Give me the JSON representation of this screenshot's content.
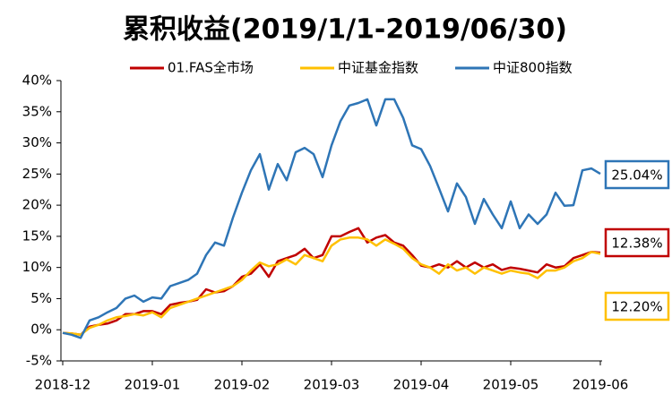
{
  "chart_data": {
    "type": "line",
    "title": "累积收益(2019/1/1-2019/06/30)",
    "categories": [
      "2018-12",
      null,
      null,
      null,
      null,
      null,
      null,
      null,
      null,
      null,
      "2019-01",
      null,
      null,
      null,
      null,
      null,
      null,
      null,
      null,
      null,
      "2019-02",
      null,
      null,
      null,
      null,
      null,
      null,
      null,
      null,
      null,
      "2019-03",
      null,
      null,
      null,
      null,
      null,
      null,
      null,
      null,
      null,
      "2019-04",
      null,
      null,
      null,
      null,
      null,
      null,
      null,
      null,
      null,
      "2019-05",
      null,
      null,
      null,
      null,
      null,
      null,
      null,
      null,
      null,
      "2019-06"
    ],
    "series": [
      {
        "name": "01.FAS全市场",
        "color": "#c00000",
        "values": [
          -0.5,
          -0.6,
          -0.8,
          0.5,
          0.8,
          1.0,
          1.5,
          2.5,
          2.5,
          3.0,
          3.0,
          2.5,
          4.0,
          4.3,
          4.5,
          4.8,
          6.5,
          6.0,
          6.2,
          7.0,
          8.5,
          9.0,
          10.5,
          8.5,
          11.0,
          11.5,
          12.0,
          13.0,
          11.5,
          12.0,
          15.0,
          15.0,
          15.7,
          16.3,
          14.0,
          14.8,
          15.2,
          14.0,
          13.5,
          12.0,
          10.3,
          10.0,
          10.5,
          10.0,
          11.0,
          10.0,
          10.8,
          10.0,
          10.5,
          9.6,
          10.0,
          9.8,
          9.5,
          9.2,
          10.5,
          10.0,
          10.2,
          11.5,
          12.0,
          12.5,
          12.38
        ],
        "value_labels": [
          null,
          null,
          null,
          null,
          null,
          null,
          null,
          null,
          null,
          null,
          null,
          null,
          null,
          null,
          null,
          null,
          null,
          null,
          null,
          null,
          null,
          null,
          null,
          null,
          null,
          null,
          null,
          null,
          null,
          null,
          null,
          null,
          null,
          null,
          null,
          null,
          null,
          null,
          null,
          null,
          null,
          null,
          null,
          null,
          null,
          null,
          null,
          null,
          null,
          null,
          null,
          null,
          null,
          null,
          null,
          null,
          null,
          null,
          null,
          null,
          "12.38%"
        ]
      },
      {
        "name": "中证基金指数",
        "color": "#ffc000",
        "values": [
          -0.5,
          -0.6,
          -0.8,
          0.3,
          0.8,
          1.5,
          2.0,
          2.2,
          2.5,
          2.3,
          2.8,
          2.0,
          3.5,
          4.0,
          4.5,
          5.0,
          5.5,
          6.0,
          6.5,
          7.0,
          8.0,
          9.5,
          10.8,
          10.2,
          10.5,
          11.3,
          10.5,
          12.0,
          11.5,
          11.0,
          13.5,
          14.5,
          14.8,
          14.8,
          14.5,
          13.5,
          14.5,
          13.8,
          13.0,
          11.5,
          10.5,
          10.0,
          9.0,
          10.5,
          9.5,
          10.0,
          9.0,
          10.0,
          9.5,
          9.0,
          9.5,
          9.2,
          9.0,
          8.3,
          9.5,
          9.5,
          10.0,
          11.0,
          11.5,
          12.5,
          12.2
        ],
        "value_labels": [
          null,
          null,
          null,
          null,
          null,
          null,
          null,
          null,
          null,
          null,
          null,
          null,
          null,
          null,
          null,
          null,
          null,
          null,
          null,
          null,
          null,
          null,
          null,
          null,
          null,
          null,
          null,
          null,
          null,
          null,
          null,
          null,
          null,
          null,
          null,
          null,
          null,
          null,
          null,
          null,
          null,
          null,
          null,
          null,
          null,
          null,
          null,
          null,
          null,
          null,
          null,
          null,
          null,
          null,
          null,
          null,
          null,
          null,
          null,
          null,
          "12.20%"
        ]
      },
      {
        "name": "中证800指数",
        "color": "#2e75b6",
        "values": [
          -0.5,
          -0.8,
          -1.3,
          1.5,
          2.0,
          2.8,
          3.5,
          5.0,
          5.5,
          4.5,
          5.2,
          5.0,
          7.0,
          7.5,
          8.0,
          9.0,
          12.0,
          14.0,
          13.5,
          18.0,
          22.0,
          25.6,
          28.2,
          22.5,
          26.6,
          24.0,
          28.5,
          29.2,
          28.2,
          24.5,
          29.6,
          33.5,
          36.0,
          36.4,
          37.0,
          32.8,
          37.0,
          37.0,
          34.0,
          29.6,
          29.0,
          26.3,
          22.7,
          19.0,
          23.5,
          21.3,
          17.0,
          21.0,
          18.5,
          16.3,
          20.6,
          16.3,
          18.5,
          17.0,
          18.5,
          22.0,
          19.9,
          20.0,
          25.6,
          25.9,
          25.04
        ],
        "value_labels": [
          null,
          null,
          null,
          null,
          null,
          null,
          null,
          null,
          null,
          null,
          null,
          null,
          null,
          null,
          null,
          null,
          null,
          null,
          null,
          null,
          null,
          null,
          null,
          null,
          null,
          null,
          null,
          null,
          null,
          null,
          null,
          null,
          null,
          null,
          null,
          null,
          null,
          null,
          null,
          null,
          null,
          null,
          null,
          null,
          null,
          null,
          null,
          null,
          null,
          null,
          null,
          null,
          null,
          null,
          null,
          null,
          null,
          null,
          null,
          null,
          "25.04%"
        ]
      }
    ],
    "ylim": [
      -5,
      40
    ],
    "yticks": [
      {
        "value": -5,
        "label": "-5%"
      },
      {
        "value": 0,
        "label": "0%"
      },
      {
        "value": 5,
        "label": "5%"
      },
      {
        "value": 10,
        "label": "10%"
      },
      {
        "value": 15,
        "label": "15%"
      },
      {
        "value": 20,
        "label": "20%"
      },
      {
        "value": 25,
        "label": "25%"
      },
      {
        "value": 30,
        "label": "30%"
      },
      {
        "value": 35,
        "label": "35%"
      },
      {
        "value": 40,
        "label": "40%"
      }
    ],
    "grid": false,
    "legend": "top"
  }
}
